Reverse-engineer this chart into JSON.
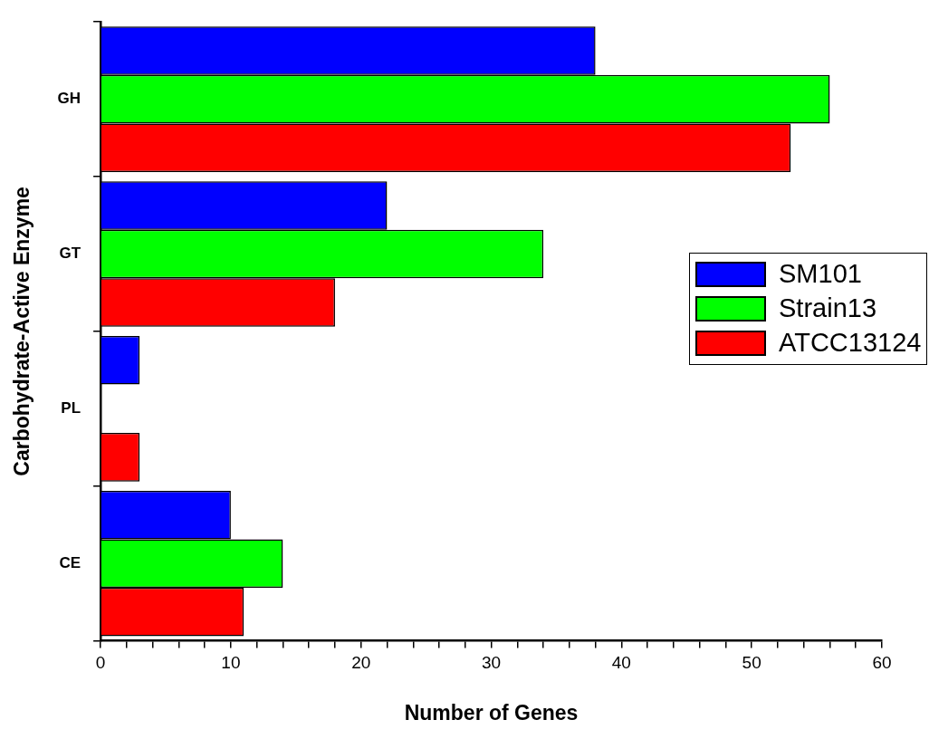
{
  "chart_data": {
    "type": "bar",
    "orientation": "horizontal",
    "xlabel": "Number of Genes",
    "ylabel": "Carbohydrate-Active Enzyme",
    "categories": [
      "GH",
      "GT",
      "PL",
      "CE"
    ],
    "series": [
      {
        "name": "SM101",
        "color": "#0000ff",
        "values": [
          38,
          22,
          3,
          10
        ]
      },
      {
        "name": "Strain13",
        "color": "#00ff00",
        "values": [
          56,
          34,
          0,
          14
        ]
      },
      {
        "name": "ATCC13124",
        "color": "#ff0000",
        "values": [
          53,
          18,
          3,
          11
        ]
      }
    ],
    "xlim": [
      0,
      60
    ],
    "xticks": [
      0,
      {
        "value": 2,
        "label": null
      },
      {
        "value": 4,
        "label": null
      },
      {
        "value": 6,
        "label": null
      },
      {
        "value": 8,
        "label": null
      },
      10,
      {
        "value": 12,
        "label": null
      },
      {
        "value": 14,
        "label": null
      },
      {
        "value": 16,
        "label": null
      },
      {
        "value": 18,
        "label": null
      },
      20,
      {
        "value": 22,
        "label": null
      },
      {
        "value": 24,
        "label": null
      },
      {
        "value": 26,
        "label": null
      },
      {
        "value": 28,
        "label": null
      },
      30,
      {
        "value": 32,
        "label": null
      },
      {
        "value": 34,
        "label": null
      },
      {
        "value": 36,
        "label": null
      },
      {
        "value": 38,
        "label": null
      },
      40,
      {
        "value": 42,
        "label": null
      },
      {
        "value": 44,
        "label": null
      },
      {
        "value": 46,
        "label": null
      },
      {
        "value": 48,
        "label": null
      },
      50,
      {
        "value": 52,
        "label": null
      },
      {
        "value": 54,
        "label": null
      },
      {
        "value": 56,
        "label": null
      },
      {
        "value": 58,
        "label": null
      },
      60
    ],
    "grid": false,
    "legend": "right"
  }
}
